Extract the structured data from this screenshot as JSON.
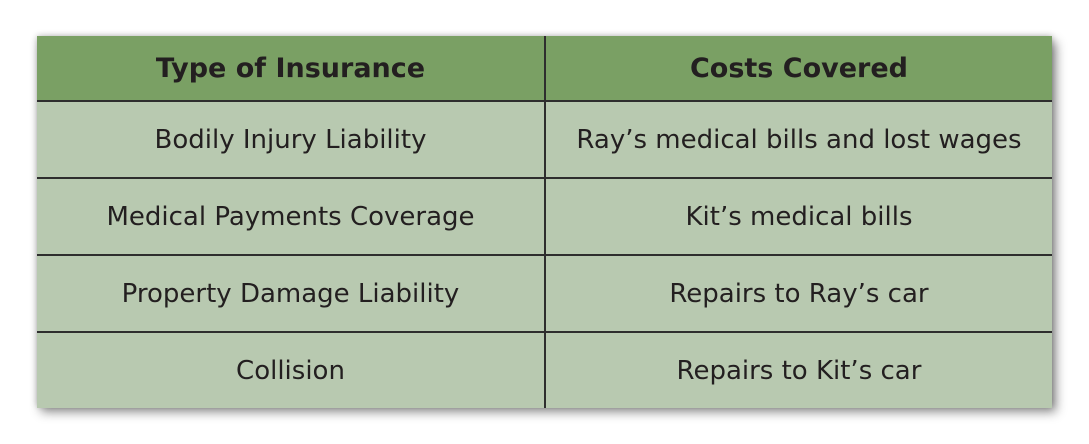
{
  "table": {
    "headers": [
      "Type of Insurance",
      "Costs Covered"
    ],
    "rows": [
      [
        "Bodily Injury Liability",
        "Ray’s medical bills and lost wages"
      ],
      [
        "Medical Payments Coverage",
        "Kit’s medical bills"
      ],
      [
        "Property Damage Liability",
        "Repairs to Ray’s car"
      ],
      [
        "Collision",
        "Repairs to Kit’s car"
      ]
    ]
  },
  "colors": {
    "header_bg": "#7aa064",
    "row_bg": "#b8c9b0",
    "border": "#2e2e2e",
    "text": "#231f20"
  }
}
